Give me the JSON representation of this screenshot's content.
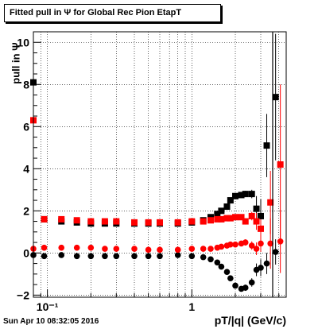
{
  "chart_data": {
    "type": "scatter",
    "title": "Fitted pull in  Ψ  for Global Rec Pion EtapT",
    "xlabel": "pT/|q| (GeV/c)",
    "ylabel": "pull in  Ψ",
    "timestamp": "Sun Apr 10 08:32:05 2016",
    "x_scale": "log",
    "xlim": [
      0.08,
      4.5
    ],
    "ylim": [
      -2.1,
      10.5
    ],
    "x_tick_labels": [
      "10⁻¹",
      "1"
    ],
    "y_tick_labels": [
      "−2",
      "0",
      "2",
      "4",
      "6",
      "8",
      "10"
    ],
    "grid": true,
    "series": [
      {
        "color": "#000000",
        "marker": "square",
        "x": [
          0.08,
          0.095,
          0.125,
          0.16,
          0.2,
          0.25,
          0.3,
          0.4,
          0.5,
          0.6,
          0.8,
          1.0,
          1.2,
          1.35,
          1.5,
          1.6,
          1.75,
          1.85,
          2.0,
          2.2,
          2.35,
          2.6,
          2.8,
          3.0,
          3.3,
          3.8
        ],
        "y": [
          8.1,
          1.6,
          1.5,
          1.45,
          1.4,
          1.4,
          1.4,
          1.4,
          1.4,
          1.4,
          1.4,
          1.45,
          1.55,
          1.7,
          1.85,
          2.0,
          2.2,
          2.5,
          2.7,
          2.75,
          2.8,
          2.8,
          2.1,
          1.75,
          5.1,
          7.4
        ],
        "err": [
          0.1,
          0.05,
          0.05,
          0.05,
          0.05,
          0.05,
          0.05,
          0.05,
          0.05,
          0.05,
          0.05,
          0.05,
          0.05,
          0.05,
          0.05,
          0.1,
          0.1,
          0.1,
          0.1,
          0.1,
          0.15,
          0.2,
          0.6,
          0.8,
          1.5,
          3.0
        ]
      },
      {
        "color": "#ff0000",
        "marker": "square",
        "x": [
          0.08,
          0.095,
          0.125,
          0.16,
          0.2,
          0.25,
          0.3,
          0.4,
          0.5,
          0.6,
          0.8,
          1.0,
          1.2,
          1.35,
          1.5,
          1.6,
          1.75,
          1.85,
          2.0,
          2.2,
          2.35,
          2.6,
          2.8,
          3.0,
          3.5,
          4.1
        ],
        "y": [
          6.3,
          1.6,
          1.6,
          1.55,
          1.5,
          1.5,
          1.5,
          1.45,
          1.45,
          1.45,
          1.45,
          1.5,
          1.5,
          1.55,
          1.6,
          1.6,
          1.65,
          1.65,
          1.7,
          1.7,
          1.5,
          1.75,
          1.5,
          1.15,
          2.4,
          4.2
        ],
        "err": [
          0.1,
          0.05,
          0.05,
          0.05,
          0.05,
          0.05,
          0.05,
          0.05,
          0.05,
          0.05,
          0.05,
          0.05,
          0.05,
          0.05,
          0.05,
          0.05,
          0.05,
          0.05,
          0.1,
          0.1,
          0.15,
          0.2,
          0.4,
          0.5,
          1.5,
          3.8
        ]
      },
      {
        "color": "#000000",
        "marker": "circle",
        "x": [
          0.08,
          0.095,
          0.125,
          0.16,
          0.2,
          0.25,
          0.3,
          0.4,
          0.5,
          0.6,
          0.8,
          1.0,
          1.2,
          1.35,
          1.5,
          1.6,
          1.75,
          1.85,
          2.0,
          2.2,
          2.35,
          2.6,
          2.8,
          3.0,
          3.3,
          3.8
        ],
        "y": [
          -0.1,
          -0.15,
          -0.1,
          -0.15,
          -0.15,
          -0.15,
          -0.15,
          -0.15,
          -0.15,
          -0.15,
          -0.1,
          -0.15,
          -0.2,
          -0.3,
          -0.45,
          -0.65,
          -0.9,
          -1.2,
          -1.55,
          -1.7,
          -1.65,
          -1.4,
          -0.8,
          -0.7,
          -0.5,
          0.05
        ],
        "err": [
          0.05,
          0.05,
          0.05,
          0.05,
          0.05,
          0.05,
          0.05,
          0.05,
          0.05,
          0.05,
          0.05,
          0.05,
          0.05,
          0.05,
          0.05,
          0.05,
          0.05,
          0.1,
          0.1,
          0.1,
          0.15,
          0.2,
          0.3,
          0.4,
          0.5,
          0.6
        ]
      },
      {
        "color": "#ff0000",
        "marker": "circle",
        "x": [
          0.08,
          0.095,
          0.125,
          0.16,
          0.2,
          0.25,
          0.3,
          0.4,
          0.5,
          0.6,
          0.8,
          1.0,
          1.2,
          1.35,
          1.5,
          1.6,
          1.75,
          1.85,
          2.0,
          2.2,
          2.35,
          2.6,
          2.8,
          3.0,
          3.5,
          4.1
        ],
        "y": [
          0.2,
          0.25,
          0.25,
          0.25,
          0.25,
          0.2,
          0.2,
          0.2,
          0.15,
          0.15,
          0.15,
          0.2,
          0.2,
          0.2,
          0.25,
          0.3,
          0.35,
          0.4,
          0.4,
          0.45,
          0.5,
          0.35,
          0.2,
          0.45,
          0.45,
          0.55
        ],
        "err": [
          0.05,
          0.05,
          0.05,
          0.05,
          0.05,
          0.05,
          0.05,
          0.05,
          0.05,
          0.05,
          0.05,
          0.05,
          0.05,
          0.05,
          0.05,
          0.05,
          0.05,
          0.05,
          0.1,
          0.1,
          0.15,
          0.2,
          0.3,
          0.4,
          1.2,
          1.5
        ]
      }
    ]
  }
}
